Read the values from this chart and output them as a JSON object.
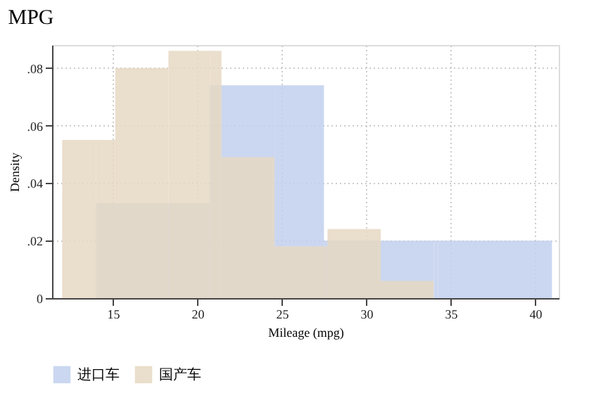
{
  "chart_data": {
    "type": "histogram",
    "title": "MPG",
    "xlabel": "Mileage (mpg)",
    "ylabel": "Density",
    "bins": [
      12,
      14,
      15.14,
      18.29,
      20.75,
      21.43,
      24.57,
      27.5,
      27.71,
      30.86,
      34,
      34.25,
      41
    ],
    "series": [
      {
        "name": "进口车",
        "color": "#c2d0ed",
        "values": [
          null,
          0.033,
          0.033,
          0.033,
          0.074,
          0.074,
          0.074,
          0.02,
          0.02,
          0.02,
          0.02,
          0.02
        ]
      },
      {
        "name": "国产车",
        "color": "#e6d8c3",
        "values": [
          0.055,
          0.055,
          0.08,
          0.086,
          0.086,
          0.049,
          0.018,
          0.018,
          0.024,
          0.006,
          null,
          null
        ]
      }
    ],
    "xlim": [
      11.4,
      41.4
    ],
    "xticks": [
      15,
      20,
      25,
      30,
      35,
      40
    ],
    "ylim": [
      0,
      0.088
    ],
    "yticks": [
      {
        "value": 0,
        "label": "0"
      },
      {
        "value": 0.02,
        "label": ".02"
      },
      {
        "value": 0.04,
        "label": ".04"
      },
      {
        "value": 0.06,
        "label": ".06"
      },
      {
        "value": 0.08,
        "label": ".08"
      }
    ],
    "grid": true,
    "legend": "bottom"
  }
}
